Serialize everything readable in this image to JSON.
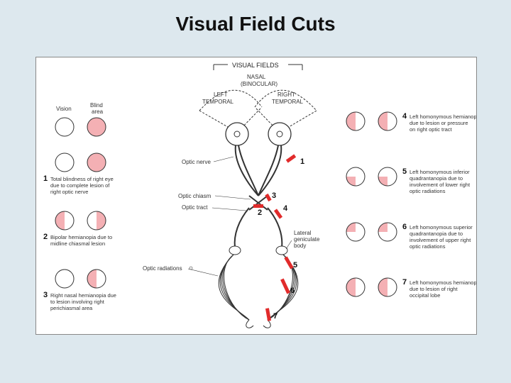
{
  "title": "Visual Field Cuts",
  "colors": {
    "bg": "#dde8ee",
    "panel": "#fff",
    "stroke": "#333",
    "fill": "#f4b0b4",
    "red": "#e12b2b"
  },
  "radius": 13,
  "header": {
    "vf": "VISUAL FIELDS",
    "nasal": "NASAL",
    "binoc": "(BINOCULAR)",
    "lt": "LEFT",
    "rt": "RIGHT",
    "temp": "TEMPORAL"
  },
  "legend": {
    "vision": "Vision",
    "blind": "Blind",
    "area": "area"
  },
  "anat": {
    "on": "Optic nerve",
    "oc": "Optic chiasm",
    "ot": "Optic tract",
    "lgb": "Lateral",
    "lgb2": "geniculate",
    "lgb3": "body",
    "or": "Optic radiations"
  },
  "left": [
    {
      "n": "1",
      "t": [
        "Total blindness of right eye",
        "due to complete lesion of",
        "right optic nerve"
      ],
      "L": "none",
      "R": "full"
    },
    {
      "n": "2",
      "t": [
        "Bipolar hemianopia due to",
        "midline chiasmal lesion"
      ],
      "L": "lh",
      "R": "rh"
    },
    {
      "n": "3",
      "t": [
        "Right nasal hemianopia due",
        "to lesion involving right",
        "perichiasmal area"
      ],
      "L": "none",
      "R": "lh"
    }
  ],
  "right": [
    {
      "n": "4",
      "t": [
        "Left homonymous hemianopia",
        "due to lesion or pressure",
        "on right optic tract"
      ],
      "L": "lh",
      "R": "lh"
    },
    {
      "n": "5",
      "t": [
        "Left homonymous inferior",
        "quadrantanopia due to",
        "involvement of lower right",
        "optic radiations"
      ],
      "L": "llq",
      "R": "llq"
    },
    {
      "n": "6",
      "t": [
        "Left homonymous superior",
        "quadrantanopia due to",
        "involvement of upper right",
        "optic radiations"
      ],
      "L": "ulq",
      "R": "ulq"
    },
    {
      "n": "7",
      "t": [
        "Left homonymous hemianopia",
        "due to lesion of right",
        "occipital lobe"
      ],
      "L": "lh",
      "R": "lh"
    }
  ],
  "lesions": [
    "1",
    "2",
    "3",
    "4",
    "5",
    "6",
    "7"
  ]
}
